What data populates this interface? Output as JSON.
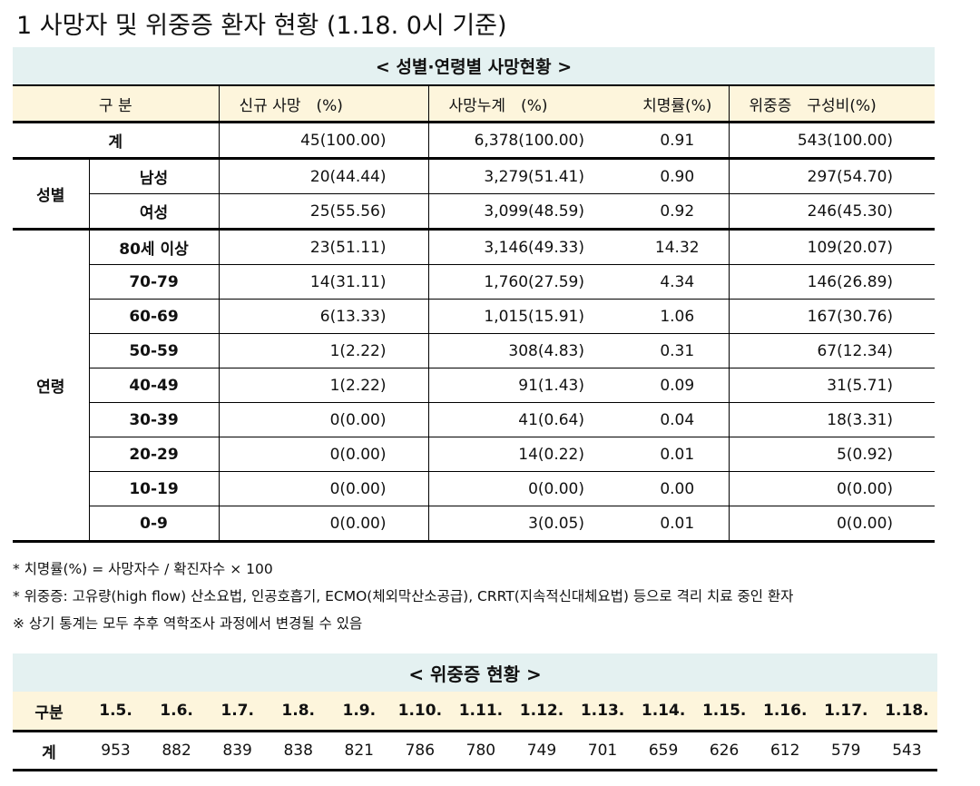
{
  "title": "1 사망자 및 위중증 환자 현황 (1.18. 0시 기준)",
  "death_table": {
    "caption": "< 성별·연령별 사망현황 >",
    "header": [
      "구 분",
      "신규 사망　(%)",
      "사망누계　(%)",
      "치명률(%)",
      "위중증　구성비(%)"
    ],
    "total": [
      "계",
      "45(100.00)",
      "6,378(100.00)",
      "0.91",
      "543(100.00)"
    ],
    "groups": [
      {
        "label": "성별",
        "rows": [
          [
            "남성",
            "20(44.44)",
            "3,279(51.41)",
            "0.90",
            "297(54.70)"
          ],
          [
            "여성",
            "25(55.56)",
            "3,099(48.59)",
            "0.92",
            "246(45.30)"
          ]
        ]
      },
      {
        "label": "연령",
        "rows": [
          [
            "80세 이상",
            "23(51.11)",
            "3,146(49.33)",
            "14.32",
            "109(20.07)"
          ],
          [
            "70-79",
            "14(31.11)",
            "1,760(27.59)",
            "4.34",
            "146(26.89)"
          ],
          [
            "60-69",
            "6(13.33)",
            "1,015(15.91)",
            "1.06",
            "167(30.76)"
          ],
          [
            "50-59",
            "1(2.22)",
            "308(4.83)",
            "0.31",
            "67(12.34)"
          ],
          [
            "40-49",
            "1(2.22)",
            "91(1.43)",
            "0.09",
            "31(5.71)"
          ],
          [
            "30-39",
            "0(0.00)",
            "41(0.64)",
            "0.04",
            "18(3.31)"
          ],
          [
            "20-29",
            "0(0.00)",
            "14(0.22)",
            "0.01",
            "5(0.92)"
          ],
          [
            "10-19",
            "0(0.00)",
            "0(0.00)",
            "0.00",
            "0(0.00)"
          ],
          [
            "0-9",
            "0(0.00)",
            "3(0.05)",
            "0.01",
            "0(0.00)"
          ]
        ]
      }
    ]
  },
  "notes": [
    "* 치명률(%) = 사망자수 / 확진자수 × 100",
    "* 위중증: 고유량(high flow) 산소요법, 인공호흡기, ECMO(체외막산소공급), CRRT(지속적신대체요법) 등으로 격리 치료 중인 환자",
    "※ 상기 통계는 모두 추후 역학조사 과정에서 변경될 수 있음"
  ],
  "severe_table": {
    "caption": "< 위중증 현황 >",
    "header": [
      "구분",
      "1.5.",
      "1.6.",
      "1.7.",
      "1.8.",
      "1.9.",
      "1.10.",
      "1.11.",
      "1.12.",
      "1.13.",
      "1.14.",
      "1.15.",
      "1.16.",
      "1.17.",
      "1.18."
    ],
    "row": [
      "계",
      953,
      882,
      839,
      838,
      821,
      786,
      780,
      749,
      701,
      659,
      626,
      612,
      579,
      543
    ]
  }
}
